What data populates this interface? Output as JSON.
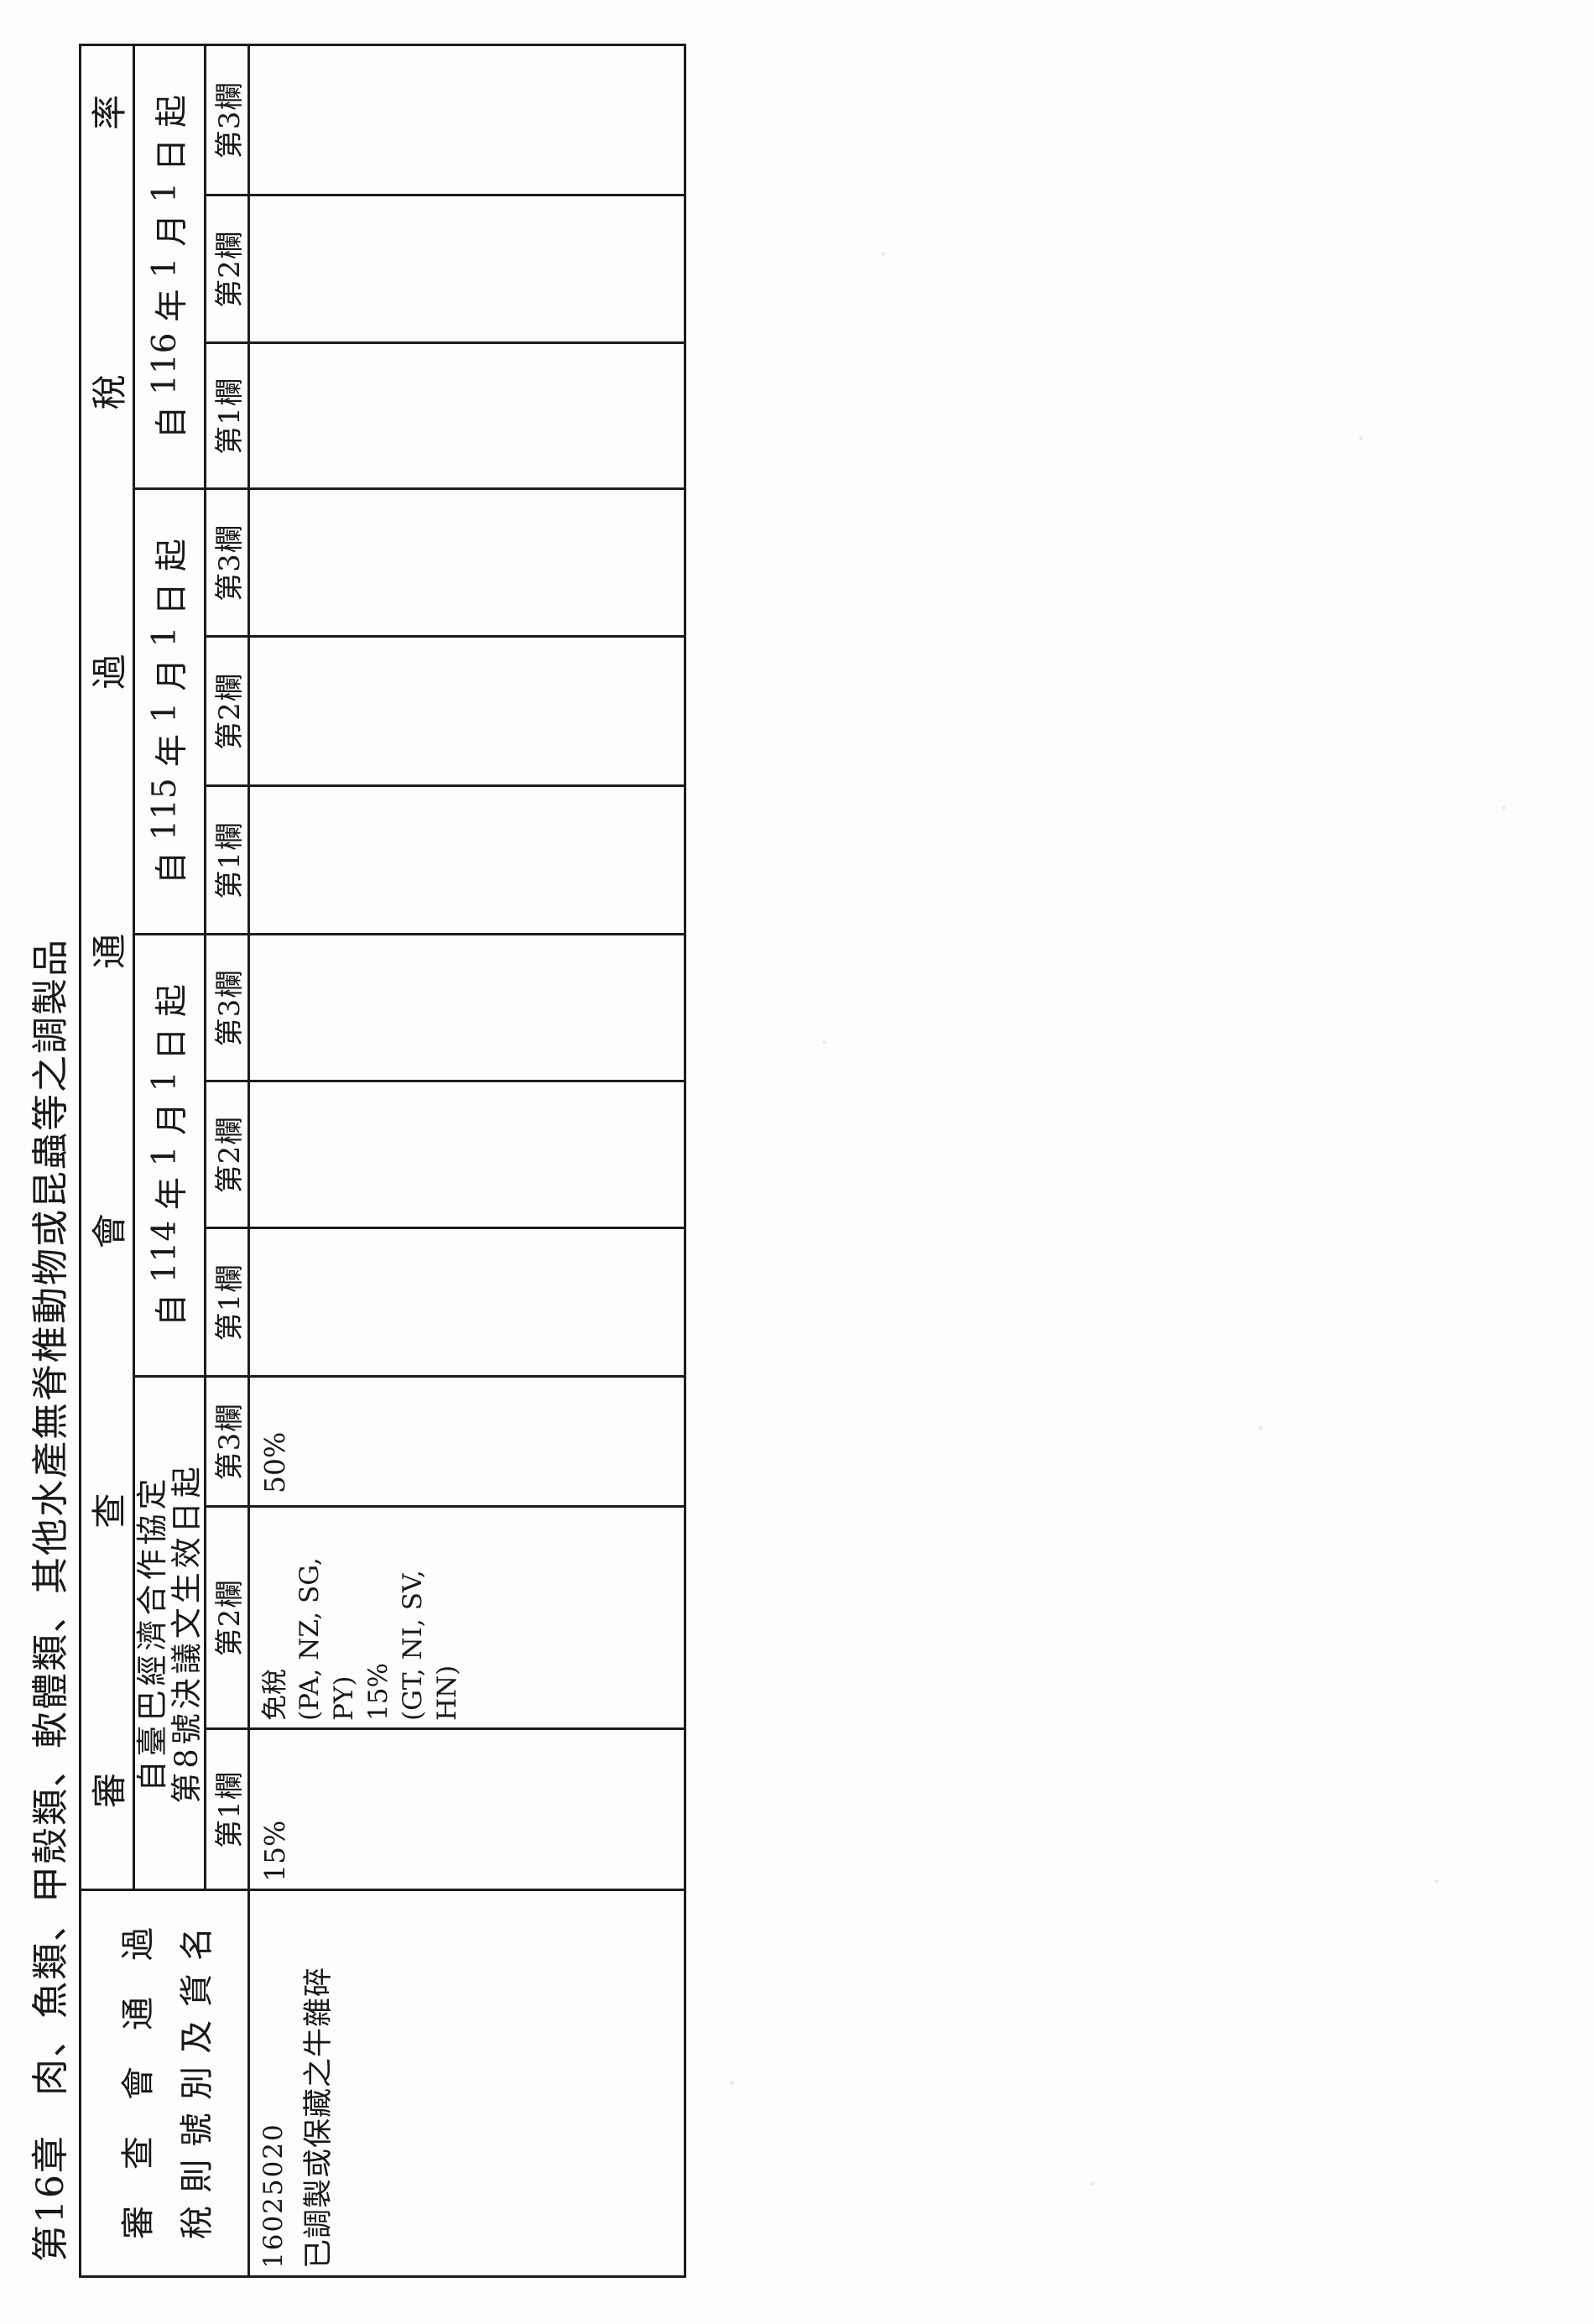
{
  "page": {
    "chapter_title": "第16章　肉、魚類、甲殼類、軟體類、其他水產無脊椎動物或昆蟲等之調製品"
  },
  "colors": {
    "paper": "#fdfdfc",
    "ink": "#1c1c1c"
  },
  "table": {
    "item_header_line1": "審查會通過",
    "item_header_line2": "稅則號別及貨名",
    "rate_header": "審查會通過稅率",
    "groups": [
      {
        "id": "agreement",
        "label_line1": "自臺巴經濟合作協定",
        "label_line2": "第8號決議文生效日起",
        "columns": [
          "第1欄",
          "第2欄",
          "第3欄"
        ]
      },
      {
        "id": "y114",
        "label": "自 114 年 1 月 1 日 起",
        "columns": [
          "第1欄",
          "第2欄",
          "第3欄"
        ]
      },
      {
        "id": "y115",
        "label": "自 115 年 1 月 1 日 起",
        "columns": [
          "第1欄",
          "第2欄",
          "第3欄"
        ]
      },
      {
        "id": "y116",
        "label": "自 116 年 1 月 1 日 起",
        "columns": [
          "第1欄",
          "第2欄",
          "第3欄"
        ]
      }
    ],
    "row": {
      "code": "16025020",
      "name": "已調製或保藏之牛雜碎",
      "rates": {
        "agreement": {
          "col1": "15%",
          "col2_lines": [
            "免稅",
            "(PA, NZ, SG,",
            "PY)",
            "15%",
            "(GT, NI, SV,",
            "HN)"
          ],
          "col3": "50%"
        },
        "y114": {
          "col1": "",
          "col2": "",
          "col3": ""
        },
        "y115": {
          "col1": "",
          "col2": "",
          "col3": ""
        },
        "y116": {
          "col1": "",
          "col2": "",
          "col3": ""
        }
      }
    }
  }
}
